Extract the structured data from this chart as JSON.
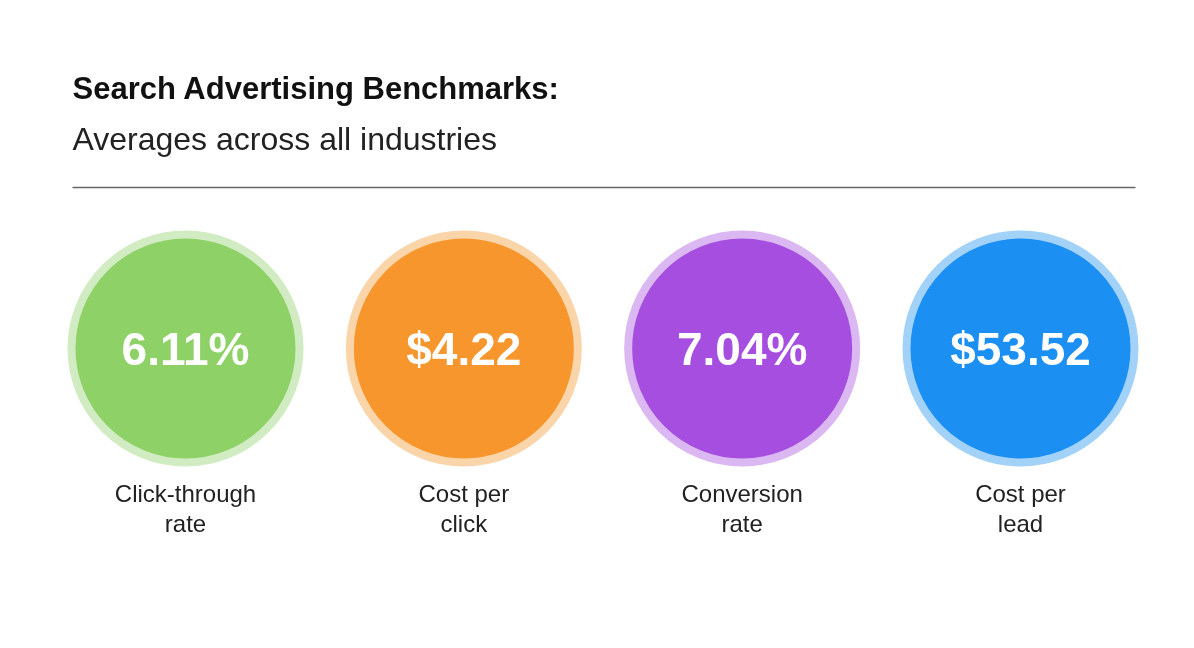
{
  "chart_data": {
    "type": "other",
    "title": "Search Advertising Benchmarks:",
    "subtitle": "Averages across all industries",
    "categories": [
      "Click-through rate",
      "Cost per click",
      "Conversion rate",
      "Cost per lead"
    ],
    "values": [
      6.11,
      4.22,
      7.04,
      53.52
    ],
    "value_labels": [
      "6.11%",
      "$4.22",
      "7.04%",
      "$53.52"
    ],
    "colors": [
      "#8dd167",
      "#f7962c",
      "#a54ee0",
      "#1b8ff2"
    ]
  }
}
